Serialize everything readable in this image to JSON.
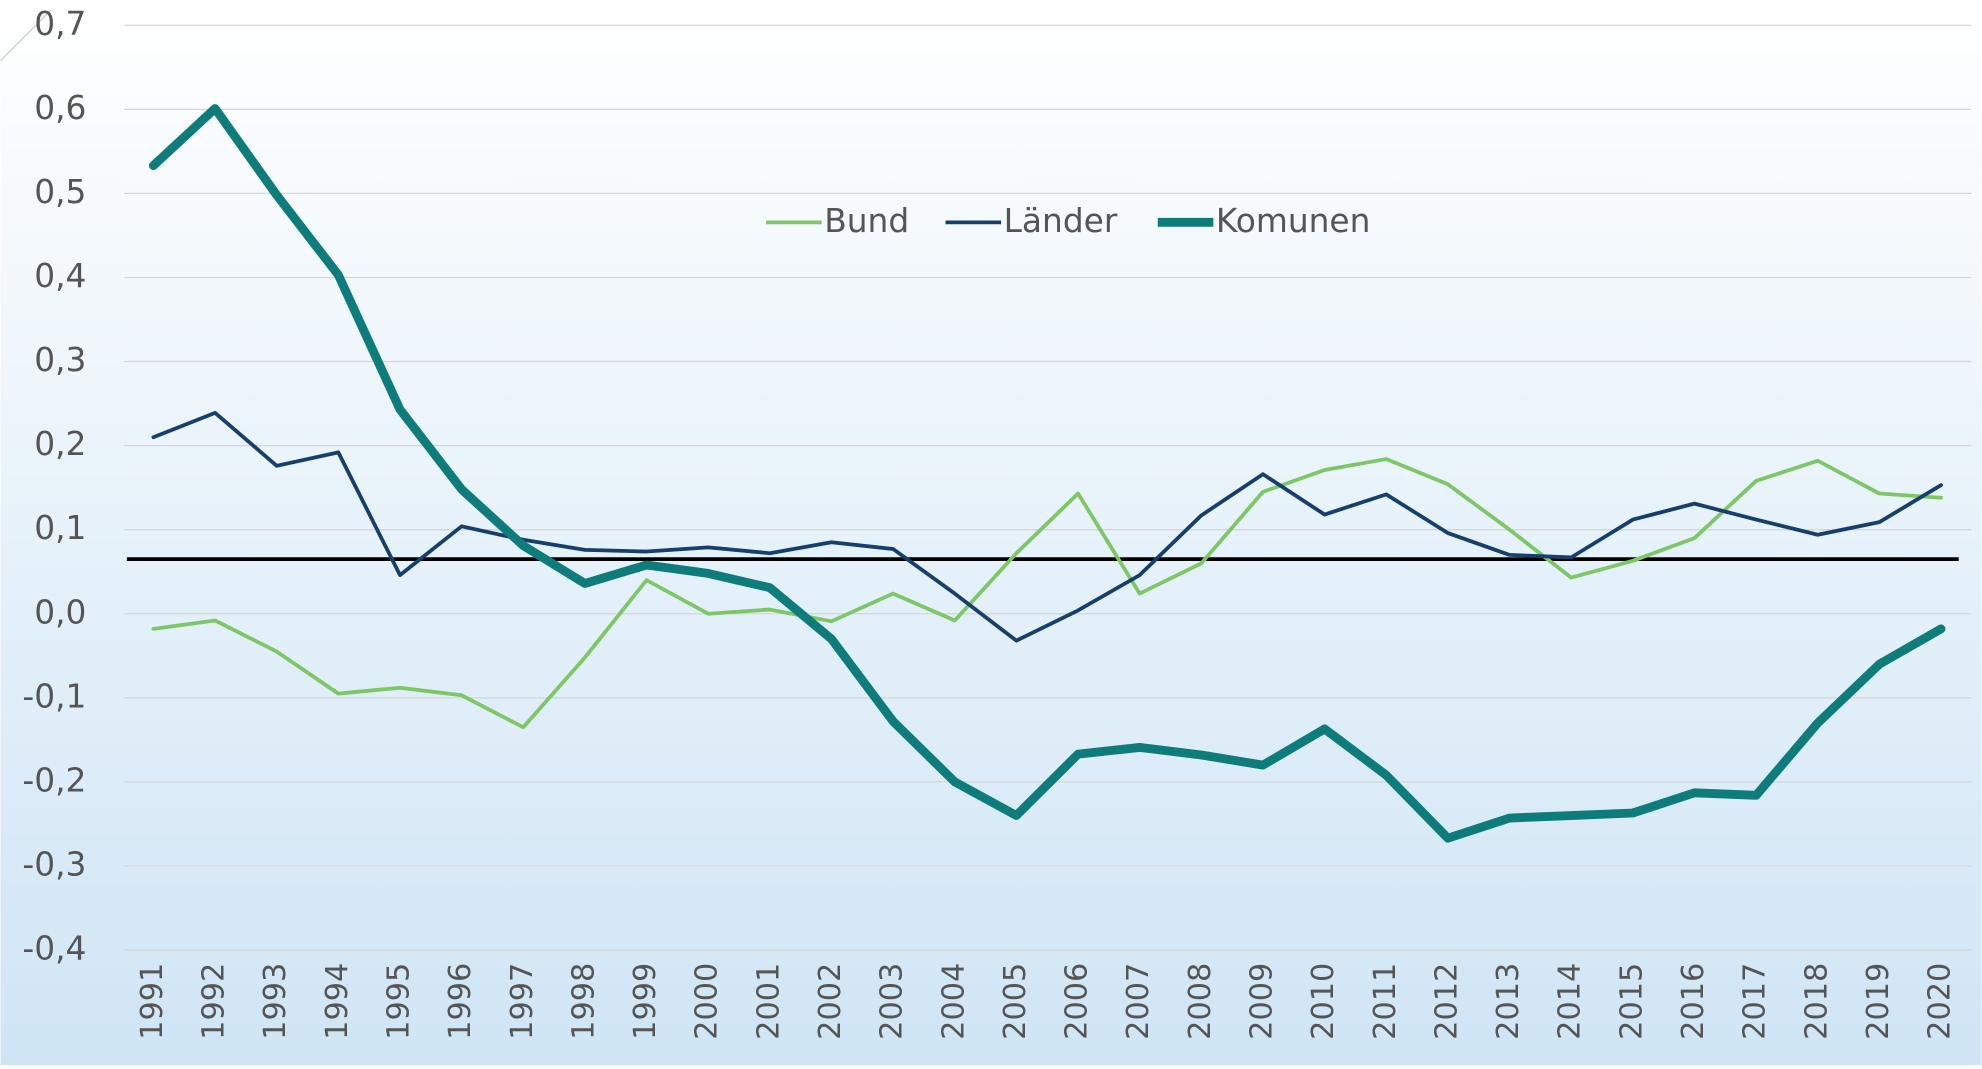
{
  "chart_data": {
    "type": "line",
    "categories": [
      "1991",
      "1992",
      "1993",
      "1994",
      "1995",
      "1996",
      "1997",
      "1998",
      "1999",
      "2000",
      "2001",
      "2002",
      "2003",
      "2004",
      "2005",
      "2006",
      "2007",
      "2008",
      "2009",
      "2010",
      "2011",
      "2012",
      "2013",
      "2014",
      "2015",
      "2016",
      "2017",
      "2018",
      "2019",
      "2020"
    ],
    "series": [
      {
        "name": "Bund",
        "color": "#7dc767",
        "values": [
          -0.018,
          -0.008,
          -0.045,
          -0.095,
          -0.088,
          -0.097,
          -0.135,
          -0.052,
          0.04,
          0.0,
          0.005,
          -0.009,
          0.024,
          -0.008,
          0.072,
          0.143,
          0.024,
          0.06,
          0.145,
          0.171,
          0.184,
          0.154,
          0.1,
          0.043,
          0.063,
          0.09,
          0.158,
          0.182,
          0.143,
          0.138
        ]
      },
      {
        "name": "Länder",
        "color": "#163f6e",
        "values": [
          0.21,
          0.239,
          0.176,
          0.192,
          0.046,
          0.104,
          0.088,
          0.076,
          0.074,
          0.079,
          0.072,
          0.085,
          0.077,
          0.024,
          -0.032,
          0.004,
          0.046,
          0.117,
          0.166,
          0.118,
          0.142,
          0.096,
          0.07,
          0.067,
          0.112,
          0.131,
          0.112,
          0.094,
          0.109,
          0.153
        ]
      },
      {
        "name": "Komunen",
        "color": "#0e7c7b",
        "values": [
          0.533,
          0.601,
          0.498,
          0.403,
          0.243,
          0.148,
          0.081,
          0.036,
          0.058,
          0.048,
          0.031,
          -0.03,
          -0.128,
          -0.2,
          -0.24,
          -0.167,
          -0.159,
          -0.168,
          -0.18,
          -0.137,
          -0.192,
          -0.267,
          -0.243,
          -0.24,
          -0.237,
          -0.213,
          -0.216,
          -0.13,
          -0.06,
          -0.018
        ]
      }
    ],
    "reference_line": 0.065,
    "ylim": [
      -0.4,
      0.7
    ],
    "yticks": [
      {
        "value": -0.4,
        "label": "-0,4"
      },
      {
        "value": -0.3,
        "label": "-0,3"
      },
      {
        "value": -0.2,
        "label": "-0,2"
      },
      {
        "value": -0.1,
        "label": "-0,1"
      },
      {
        "value": 0,
        "label": "0,0"
      },
      {
        "value": 0.1,
        "label": "0,1"
      },
      {
        "value": 0.2,
        "label": "0,2"
      },
      {
        "value": 0.3,
        "label": "0,3"
      },
      {
        "value": 0.4,
        "label": "0,4"
      },
      {
        "value": 0.5,
        "label": "0,5"
      },
      {
        "value": 0.6,
        "label": "0,6"
      },
      {
        "value": 0.7,
        "label": "0,7"
      }
    ],
    "grid": true,
    "legend": "top"
  }
}
